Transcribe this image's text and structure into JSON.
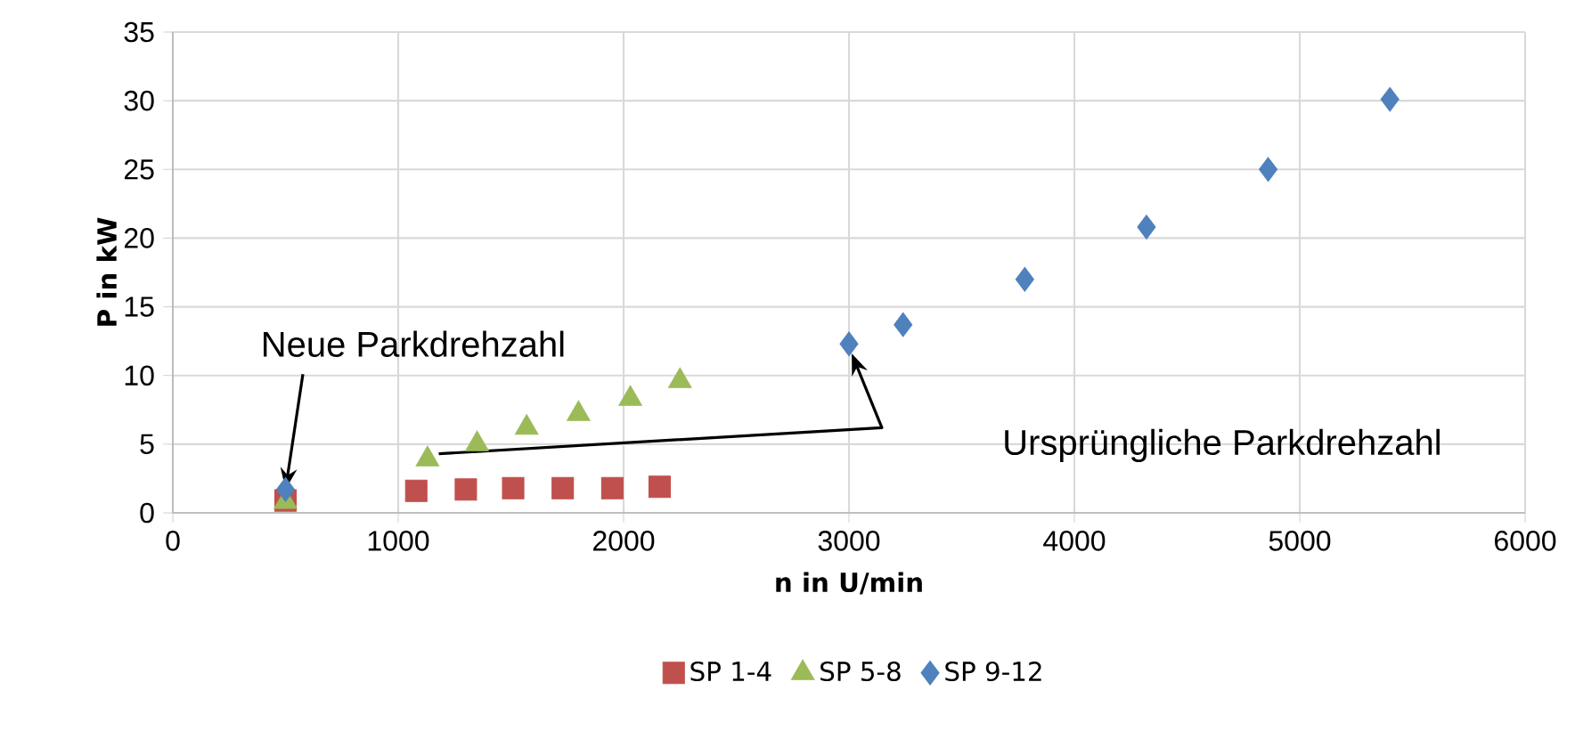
{
  "chart_data": {
    "type": "scatter",
    "xlabel": "n in U/min",
    "ylabel": "P in kW",
    "xlim": [
      0,
      6000
    ],
    "xticks": [
      0,
      1000,
      2000,
      3000,
      4000,
      5000,
      6000
    ],
    "ylim": [
      0,
      35
    ],
    "yticks": [
      0,
      5,
      10,
      15,
      20,
      25,
      30,
      35
    ],
    "grid": true,
    "legend": "bottom",
    "series": [
      {
        "name": "SP 1-4",
        "color": "#c0504d",
        "marker": "square",
        "x": [
          500,
          1080,
          1300,
          1510,
          1730,
          1950,
          2160
        ],
        "values": [
          0.9,
          1.6,
          1.7,
          1.8,
          1.8,
          1.8,
          1.9
        ]
      },
      {
        "name": "SP 5-8",
        "color": "#9bbb59",
        "marker": "triangle",
        "x": [
          500,
          1130,
          1350,
          1570,
          1800,
          2030,
          2250
        ],
        "values": [
          0.8,
          3.9,
          5.0,
          6.2,
          7.2,
          8.3,
          9.6
        ]
      },
      {
        "name": "SP 9-12",
        "color": "#4f81bd",
        "marker": "diamond",
        "x": [
          500,
          3000,
          3240,
          3780,
          4320,
          4860,
          5400
        ],
        "values": [
          1.7,
          12.3,
          13.7,
          17.0,
          20.8,
          25.0,
          30.1
        ]
      }
    ],
    "annotations": [
      {
        "text": "Neue Parkdrehzahl",
        "x": 500,
        "y": 1.7
      },
      "Ursprüngliche Parkdrehzahl"
    ]
  }
}
